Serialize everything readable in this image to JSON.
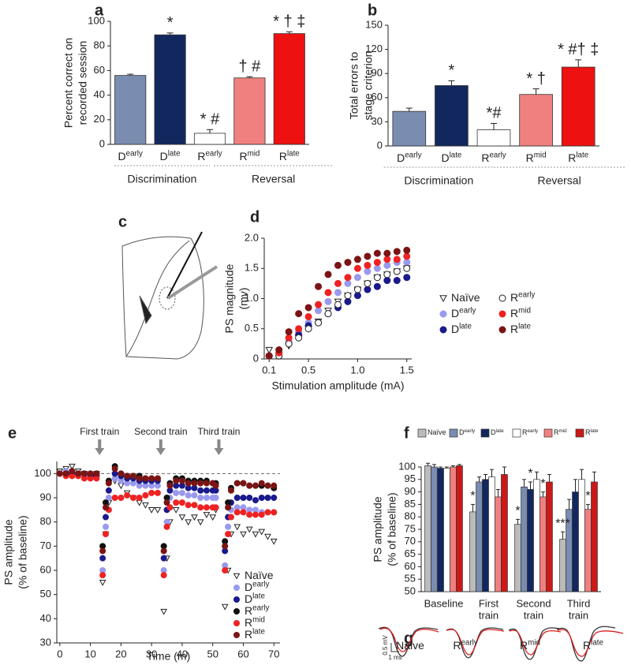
{
  "chart_data": [
    {
      "type": "bar",
      "label": "a",
      "ylabel": [
        "Percent correct on",
        "recorded session"
      ],
      "categories": [
        [
          "D",
          "early"
        ],
        [
          "D",
          "late"
        ],
        [
          "R",
          "early"
        ],
        [
          "R",
          "mid"
        ],
        [
          "R",
          "late"
        ]
      ],
      "values": [
        56,
        89,
        9,
        54,
        90
      ],
      "errors": [
        1,
        1.5,
        3,
        1,
        1.5
      ],
      "colors": [
        "#7a8db0",
        "#12275e",
        "#ffffff",
        "#f08080",
        "#ee1111"
      ],
      "annotations": [
        null,
        "*",
        "* #",
        "† #",
        "* † ‡"
      ],
      "groups": [
        "Discrimination",
        "Reversal"
      ],
      "ylim": [
        0,
        100
      ],
      "yticks": [
        0,
        20,
        40,
        60,
        80,
        100
      ]
    },
    {
      "type": "bar",
      "label": "b",
      "ylabel": [
        "Total errors to",
        "stage criterion"
      ],
      "categories": [
        [
          "D",
          "early"
        ],
        [
          "D",
          "late"
        ],
        [
          "R",
          "early"
        ],
        [
          "R",
          "mid"
        ],
        [
          "R",
          "late"
        ]
      ],
      "values": [
        43,
        75,
        20,
        64,
        98
      ],
      "errors": [
        4,
        6,
        8,
        7,
        9
      ],
      "colors": [
        "#7a8db0",
        "#12275e",
        "#ffffff",
        "#f08080",
        "#ee1111"
      ],
      "annotations": [
        null,
        "*",
        "*#",
        "* †",
        "* #† ‡"
      ],
      "groups": [
        "Discrimination",
        "Reversal"
      ],
      "ylim": [
        0,
        150
      ],
      "yticks": [
        0,
        30,
        60,
        90,
        120,
        150
      ]
    },
    {
      "type": "scatter",
      "label": "d",
      "ylabel": [
        "PS magnitude",
        "(mv)"
      ],
      "xlabel": "Stimulation amplitude (mA)",
      "x": [
        0.1,
        0.2,
        0.3,
        0.4,
        0.5,
        0.6,
        0.7,
        0.8,
        0.9,
        1.0,
        1.1,
        1.2,
        1.3,
        1.4,
        1.5
      ],
      "series": [
        {
          "name": "Naïve",
          "color": "#ffffff",
          "marker": "triangle",
          "values": [
            0.15,
            0.05,
            0.22,
            0.35,
            0.5,
            0.62,
            0.8,
            0.95,
            1.05,
            1.15,
            1.25,
            1.35,
            1.4,
            1.45,
            1.5
          ]
        },
        {
          "name": "D",
          "sup": "early",
          "color": "#9999ee",
          "marker": "circle",
          "values": [
            0.05,
            0.1,
            0.3,
            0.45,
            0.6,
            0.8,
            0.95,
            1.1,
            1.25,
            1.35,
            1.45,
            1.5,
            1.55,
            1.6,
            1.6
          ]
        },
        {
          "name": "D",
          "sup": "late",
          "color": "#1a1a8c",
          "marker": "circle",
          "values": [
            0.05,
            0.05,
            0.25,
            0.4,
            0.55,
            0.6,
            0.75,
            0.85,
            0.95,
            1.05,
            1.15,
            1.2,
            1.3,
            1.3,
            1.35
          ]
        },
        {
          "name": "R",
          "sup": "early",
          "color": "#ffffff",
          "marker": "circle",
          "values": [
            0.05,
            0.05,
            0.25,
            0.35,
            0.5,
            0.6,
            0.75,
            0.9,
            1.05,
            1.15,
            1.25,
            1.35,
            1.4,
            1.45,
            1.5
          ]
        },
        {
          "name": "R",
          "sup": "mid",
          "color": "#ee2222",
          "marker": "circle",
          "values": [
            0.05,
            0.1,
            0.35,
            0.5,
            0.7,
            0.9,
            1.1,
            1.25,
            1.35,
            1.5,
            1.55,
            1.6,
            1.65,
            1.65,
            1.7
          ]
        },
        {
          "name": "R",
          "sup": "late",
          "color": "#7b1414",
          "marker": "circle",
          "values": [
            0.05,
            0.15,
            0.45,
            0.75,
            0.85,
            1.2,
            1.4,
            1.55,
            1.6,
            1.65,
            1.7,
            1.75,
            1.75,
            1.78,
            1.8
          ]
        }
      ],
      "xlim": [
        0.05,
        1.55
      ],
      "xticks": [
        0.1,
        0.5,
        {
          "value": 1,
          "label": "1.0"
        },
        1.5
      ],
      "ylim": [
        0,
        2
      ],
      "yticks": [
        0,
        0.5,
        {
          "value": 1,
          "label": "1.0"
        },
        1.5,
        {
          "value": 2,
          "label": "2.0"
        }
      ]
    },
    {
      "type": "scatter",
      "label": "e",
      "ylabel": [
        "PS amplitude",
        "(% of baseline)"
      ],
      "xlabel": "Time (m)",
      "annotations": [
        {
          "text": "First train",
          "x": 13
        },
        {
          "text": "Second train",
          "x": 33
        },
        {
          "text": "Third  train",
          "x": 52
        }
      ],
      "hline": 100,
      "x": [
        0,
        2,
        4,
        6,
        8,
        10,
        12,
        14,
        15,
        16,
        18,
        20,
        22,
        24,
        26,
        28,
        30,
        32,
        34,
        35,
        36,
        38,
        40,
        42,
        44,
        46,
        48,
        50,
        51,
        54,
        55,
        56,
        58,
        60,
        62,
        64,
        66,
        68,
        70
      ],
      "series": [
        {
          "name": "Naïve",
          "color": "#ffffff",
          "marker": "triangle",
          "values": [
            101,
            102,
            103,
            101,
            100,
            99,
            100,
            55,
            75,
            88,
            97,
            95,
            92,
            90,
            88,
            87,
            85,
            85,
            43,
            65,
            80,
            85,
            82,
            80,
            82,
            80,
            83,
            82,
            85,
            45,
            60,
            75,
            78,
            75,
            77,
            75,
            76,
            74,
            72
          ]
        },
        {
          "name": "D",
          "sup": "early",
          "color": "#9999ee",
          "marker": "circle",
          "values": [
            100,
            101,
            100,
            100,
            99,
            99,
            99,
            60,
            78,
            90,
            98,
            97,
            96,
            96,
            95,
            95,
            95,
            95,
            60,
            80,
            90,
            92,
            92,
            91,
            91,
            90,
            90,
            90,
            90,
            62,
            78,
            85,
            86,
            86,
            85,
            85,
            84,
            84,
            84
          ]
        },
        {
          "name": "D",
          "sup": "late",
          "color": "#1a1a8c",
          "marker": "circle",
          "values": [
            100,
            100,
            100,
            100,
            100,
            99,
            99,
            65,
            82,
            93,
            100,
            99,
            98,
            98,
            97,
            97,
            97,
            97,
            65,
            85,
            93,
            95,
            95,
            94,
            94,
            93,
            93,
            93,
            93,
            68,
            82,
            88,
            90,
            90,
            90,
            89,
            90,
            90,
            90
          ]
        },
        {
          "name": "R",
          "sup": "early",
          "color": "#111111",
          "marker": "circle",
          "values": [
            100,
            100,
            101,
            100,
            100,
            100,
            100,
            70,
            88,
            97,
            103,
            100,
            99,
            99,
            99,
            98,
            98,
            98,
            70,
            90,
            96,
            98,
            98,
            97,
            97,
            97,
            97,
            96,
            96,
            72,
            88,
            94,
            96,
            96,
            95,
            95,
            95,
            95,
            94
          ]
        },
        {
          "name": "R",
          "sup": "mid",
          "color": "#ee2222",
          "marker": "circle",
          "values": [
            100,
            99,
            99,
            99,
            98,
            98,
            98,
            58,
            75,
            85,
            90,
            90,
            91,
            90,
            90,
            91,
            92,
            92,
            58,
            78,
            86,
            88,
            88,
            87,
            87,
            86,
            86,
            86,
            86,
            60,
            75,
            82,
            84,
            84,
            83,
            83,
            83,
            84,
            84
          ]
        },
        {
          "name": "R",
          "sup": "late",
          "color": "#7b1414",
          "marker": "circle",
          "values": [
            100,
            100,
            101,
            100,
            100,
            100,
            100,
            68,
            86,
            96,
            102,
            100,
            99,
            99,
            98,
            98,
            98,
            98,
            68,
            88,
            95,
            97,
            97,
            96,
            96,
            96,
            96,
            96,
            95,
            70,
            86,
            93,
            96,
            96,
            95,
            95,
            96,
            95,
            95
          ]
        }
      ],
      "xlim": [
        -1,
        72
      ],
      "xticks": [
        0,
        10,
        20,
        30,
        40,
        50,
        60,
        70
      ],
      "ylim": [
        30,
        105
      ],
      "yticks": [
        30,
        40,
        50,
        60,
        70,
        80,
        90,
        100
      ]
    },
    {
      "type": "groupedbar",
      "label": "f",
      "ylabel": [
        "PS amplitude",
        "(% of baseline)"
      ],
      "categories": [
        [
          "Baseline"
        ],
        [
          "First",
          "train"
        ],
        [
          "Second",
          "train"
        ],
        [
          "Third",
          "train"
        ]
      ],
      "series": [
        {
          "name": "Naïve",
          "color": "#bbbbbb",
          "values": [
            100.5,
            82,
            77,
            71
          ],
          "errors": [
            1,
            3,
            2,
            3
          ]
        },
        {
          "name": "D",
          "sup": "early",
          "color": "#7a8db0",
          "values": [
            100,
            94,
            92,
            83
          ],
          "errors": [
            1,
            2,
            3,
            4
          ]
        },
        {
          "name": "D",
          "sup": "late",
          "color": "#12275e",
          "values": [
            99.5,
            95,
            91,
            90
          ],
          "errors": [
            0.5,
            2,
            3,
            5
          ]
        },
        {
          "name": "R",
          "sup": "early",
          "color": "#ffffff",
          "values": [
            99.5,
            96,
            95,
            95
          ],
          "errors": [
            0.5,
            3,
            3,
            4
          ]
        },
        {
          "name": "R",
          "sup": "mid",
          "color": "#f08080",
          "values": [
            100,
            88,
            88,
            83
          ],
          "errors": [
            0.5,
            3,
            2,
            2
          ]
        },
        {
          "name": "R",
          "sup": "late",
          "color": "#cc1818",
          "values": [
            100.5,
            97,
            94,
            94
          ],
          "errors": [
            0.5,
            3,
            3,
            4
          ]
        }
      ],
      "annotations": [
        {
          "text": "*",
          "category": 1,
          "series": 0
        },
        {
          "text": "*",
          "category": 2,
          "series": 0
        },
        {
          "text": "*",
          "category": 2,
          "series": 2
        },
        {
          "text": "*",
          "category": 2,
          "series": 4
        },
        {
          "text": "***",
          "category": 3,
          "series": 0
        },
        {
          "text": "*",
          "category": 3,
          "series": 4
        }
      ],
      "ylim": [
        50,
        100
      ],
      "yticks": [
        50,
        55,
        60,
        65,
        70,
        75,
        80,
        85,
        90,
        95,
        100
      ]
    }
  ],
  "panel_c": {
    "label": "c"
  },
  "panel_g": {
    "label": "g",
    "traces": [
      [
        "Naive"
      ],
      [
        "R",
        "early"
      ],
      [
        "R",
        "mid"
      ],
      [
        "R",
        "late"
      ]
    ],
    "scale_voltage": "0.5 mV",
    "scale_time": "1 ms"
  }
}
